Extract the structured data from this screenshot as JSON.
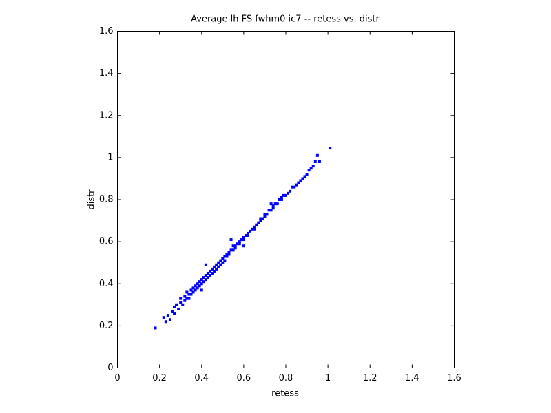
{
  "chart_data": {
    "type": "scatter",
    "title": "Average lh FS fwhm0 ic7 -- retess vs. distr",
    "xlabel": "retess",
    "ylabel": "distr",
    "series": [
      {
        "color": "#0000ff",
        "x": [
          0.18,
          0.22,
          0.23,
          0.24,
          0.25,
          0.26,
          0.27,
          0.27,
          0.28,
          0.29,
          0.3,
          0.3,
          0.31,
          0.32,
          0.32,
          0.33,
          0.33,
          0.34,
          0.34,
          0.35,
          0.35,
          0.36,
          0.36,
          0.37,
          0.37,
          0.38,
          0.38,
          0.39,
          0.39,
          0.4,
          0.4,
          0.41,
          0.41,
          0.42,
          0.42,
          0.43,
          0.43,
          0.44,
          0.44,
          0.45,
          0.45,
          0.46,
          0.46,
          0.47,
          0.47,
          0.48,
          0.48,
          0.49,
          0.49,
          0.5,
          0.5,
          0.51,
          0.51,
          0.52,
          0.52,
          0.53,
          0.53,
          0.54,
          0.55,
          0.55,
          0.56,
          0.56,
          0.57,
          0.58,
          0.58,
          0.59,
          0.6,
          0.6,
          0.61,
          0.62,
          0.62,
          0.63,
          0.64,
          0.65,
          0.65,
          0.66,
          0.67,
          0.68,
          0.68,
          0.69,
          0.7,
          0.7,
          0.71,
          0.72,
          0.73,
          0.74,
          0.74,
          0.75,
          0.76,
          0.77,
          0.78,
          0.78,
          0.79,
          0.8,
          0.81,
          0.82,
          0.83,
          0.84,
          0.85,
          0.86,
          0.87,
          0.88,
          0.89,
          0.9,
          0.91,
          0.92,
          0.93,
          0.94,
          0.95,
          0.96,
          1.01,
          0.42,
          0.54,
          0.73,
          0.6,
          0.4
        ],
        "y": [
          0.19,
          0.24,
          0.22,
          0.25,
          0.23,
          0.27,
          0.29,
          0.26,
          0.3,
          0.28,
          0.31,
          0.33,
          0.3,
          0.34,
          0.32,
          0.33,
          0.36,
          0.35,
          0.33,
          0.37,
          0.35,
          0.38,
          0.36,
          0.39,
          0.37,
          0.4,
          0.38,
          0.41,
          0.39,
          0.42,
          0.4,
          0.43,
          0.41,
          0.44,
          0.42,
          0.45,
          0.43,
          0.46,
          0.44,
          0.47,
          0.45,
          0.48,
          0.46,
          0.49,
          0.47,
          0.5,
          0.48,
          0.51,
          0.49,
          0.52,
          0.5,
          0.53,
          0.51,
          0.54,
          0.53,
          0.55,
          0.54,
          0.56,
          0.56,
          0.58,
          0.58,
          0.57,
          0.59,
          0.6,
          0.59,
          0.61,
          0.62,
          0.61,
          0.63,
          0.64,
          0.63,
          0.65,
          0.66,
          0.67,
          0.66,
          0.68,
          0.69,
          0.7,
          0.71,
          0.71,
          0.72,
          0.73,
          0.73,
          0.75,
          0.75,
          0.76,
          0.77,
          0.78,
          0.78,
          0.8,
          0.8,
          0.81,
          0.82,
          0.82,
          0.83,
          0.84,
          0.86,
          0.86,
          0.87,
          0.88,
          0.89,
          0.9,
          0.91,
          0.92,
          0.94,
          0.95,
          0.96,
          0.98,
          1.01,
          0.98,
          1.045,
          0.49,
          0.61,
          0.78,
          0.58,
          0.37
        ]
      }
    ],
    "xlim": [
      0,
      1.6
    ],
    "ylim": [
      0,
      1.6
    ],
    "xticks": [
      0,
      0.2,
      0.4,
      0.6,
      0.8,
      1,
      1.2,
      1.4,
      1.6
    ],
    "yticks": [
      0,
      0.2,
      0.4,
      0.6,
      0.8,
      1,
      1.2,
      1.4,
      1.6
    ],
    "grid": false
  }
}
